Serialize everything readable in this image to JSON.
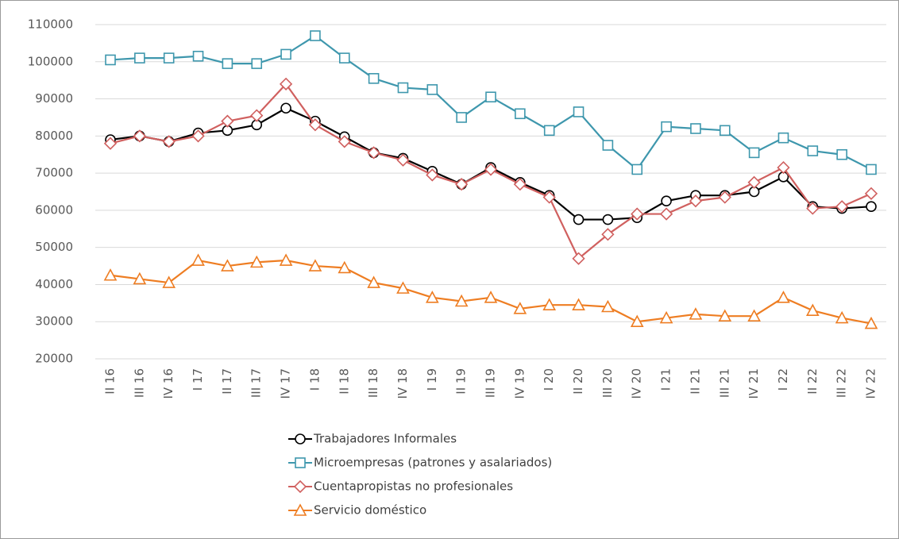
{
  "chart_data": {
    "type": "line",
    "categories": [
      "II 16",
      "III 16",
      "IV 16",
      "I 17",
      "II 17",
      "III 17",
      "IV 17",
      "I 18",
      "II 18",
      "III 18",
      "IV 18",
      "I 19",
      "II 19",
      "III 19",
      "IV 19",
      "I 20",
      "II 20",
      "III 20",
      "IV 20",
      "I 21",
      "II 21",
      "III 21",
      "IV 21",
      "I 22",
      "II 22",
      "III 22",
      "IV 22"
    ],
    "series": [
      {
        "name": "Trabajadores Informales",
        "color": "#000000",
        "marker": "circle",
        "values": [
          79000,
          80000,
          78500,
          80800,
          81500,
          83000,
          87500,
          84000,
          79800,
          75500,
          74000,
          70500,
          67000,
          71500,
          67500,
          64000,
          57500,
          57500,
          58000,
          62500,
          64000,
          64000,
          65000,
          69000,
          61000,
          60500,
          61000
        ]
      },
      {
        "name": "Microempresas (patrones y asalariados)",
        "color": "#3e97ad",
        "marker": "square",
        "values": [
          100500,
          101000,
          101000,
          101500,
          99500,
          99500,
          102000,
          107000,
          101000,
          95500,
          93000,
          92500,
          85000,
          90500,
          86000,
          81500,
          86500,
          77500,
          71000,
          82500,
          82000,
          81500,
          75500,
          79500,
          76000,
          75000,
          71000
        ]
      },
      {
        "name": "Cuentapropistas no profesionales",
        "color": "#d0605f",
        "marker": "diamond",
        "values": [
          78000,
          80000,
          78500,
          80000,
          84000,
          85500,
          94000,
          83000,
          78500,
          75500,
          73500,
          69500,
          67000,
          71000,
          67000,
          63500,
          47000,
          53500,
          59000,
          59000,
          62500,
          63500,
          67500,
          71500,
          60500,
          61000,
          64500
        ]
      },
      {
        "name": "Servicio doméstico",
        "color": "#ee7d22",
        "marker": "triangle",
        "values": [
          42500,
          41500,
          40500,
          46500,
          45000,
          46000,
          46500,
          45000,
          44500,
          40500,
          39000,
          36500,
          35500,
          36500,
          33500,
          34500,
          34500,
          34000,
          30000,
          31000,
          32000,
          31500,
          31500,
          36500,
          33000,
          31000,
          29500
        ]
      }
    ],
    "ylim": [
      20000,
      110000
    ],
    "yticks": [
      20000,
      30000,
      40000,
      50000,
      60000,
      70000,
      80000,
      90000,
      100000,
      110000
    ],
    "grid": true,
    "legend": "bottom"
  }
}
